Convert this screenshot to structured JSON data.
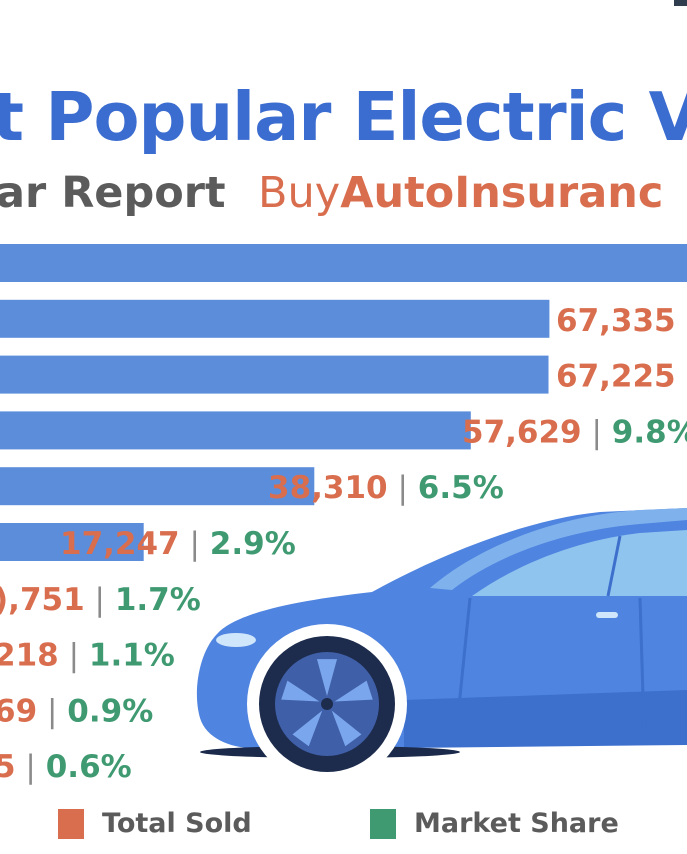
{
  "header": {
    "title": "t Popular Electric V",
    "subtitle": "ar Report",
    "brand_prefix": "Buy",
    "brand_bold": "AutoInsuranc"
  },
  "colors": {
    "bar": "#5b8ddb",
    "sold": "#d96e4f",
    "share": "#3f9a72",
    "divider": "#8a8a8a",
    "title": "#3b6cd0",
    "car_body": "#4f84e0",
    "car_shade": "#3d6fcc",
    "car_window": "#8fc4ef",
    "car_wheel": "#3f5fa8",
    "car_tire": "#1d2c4d"
  },
  "legend": [
    {
      "label": "Total Sold",
      "color": "#d96e4f"
    },
    {
      "label": "Market Share",
      "color": "#3f9a72"
    }
  ],
  "chart_data": {
    "type": "bar",
    "orientation": "horizontal",
    "series": [
      {
        "name": "Total Sold",
        "values": [
          null,
          67335,
          67225,
          57629,
          38310,
          17247,
          null,
          null,
          null,
          null
        ]
      },
      {
        "name": "Market Share",
        "values": [
          null,
          null,
          null,
          9.8,
          6.5,
          2.9,
          1.7,
          1.1,
          0.9,
          0.6
        ]
      }
    ],
    "sold_labels": [
      "",
      "67,335",
      "67,225",
      "57,629",
      "38,310",
      "17,247",
      "),751",
      "218",
      "69",
      "5"
    ],
    "share_labels": [
      "",
      "",
      "",
      "9.8%",
      "6.5%",
      "2.9%",
      "1.7%",
      "1.1%",
      "0.9%",
      "0.6%"
    ],
    "legend_position": "bottom",
    "grid": false
  }
}
